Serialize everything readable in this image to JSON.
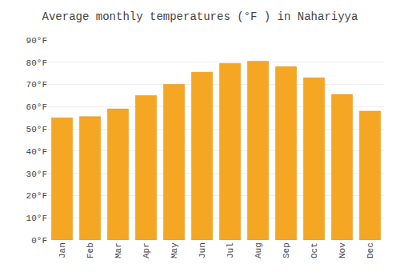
{
  "chart_data": {
    "type": "bar",
    "title": "Average monthly temperatures (°F ) in Nahariyya",
    "categories": [
      "Jan",
      "Feb",
      "Mar",
      "Apr",
      "May",
      "Jun",
      "Jul",
      "Aug",
      "Sep",
      "Oct",
      "Nov",
      "Dec"
    ],
    "values": [
      55,
      55.5,
      59,
      65,
      70,
      75.5,
      79.5,
      80.5,
      78,
      73,
      65.5,
      58
    ],
    "color": "#F5A623",
    "ylim": [
      0,
      90
    ],
    "yticks": [
      {
        "value": 0,
        "label": "0°F"
      },
      {
        "value": 10,
        "label": "10°F"
      },
      {
        "value": 20,
        "label": "20°F"
      },
      {
        "value": 30,
        "label": "30°F"
      },
      {
        "value": 40,
        "label": "40°F"
      },
      {
        "value": 50,
        "label": "50°F"
      },
      {
        "value": 60,
        "label": "60°F"
      },
      {
        "value": 70,
        "label": "70°F"
      },
      {
        "value": 80,
        "label": "80°F"
      },
      {
        "value": 90,
        "label": "90°F"
      }
    ],
    "grid": true
  }
}
